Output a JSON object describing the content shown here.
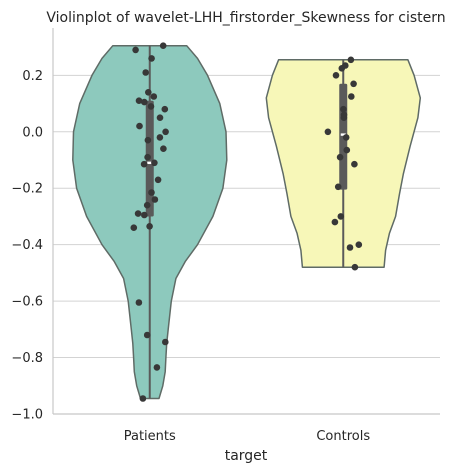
{
  "chart_data": {
    "type": "violin",
    "title": "Violinplot of wavelet-LHH_firstorder_Skewness for cistern",
    "xlabel": "target",
    "ylabel": "",
    "categories": [
      "Patients",
      "Controls"
    ],
    "ylim": [
      -1.0,
      0.35
    ],
    "yticks": [
      -1.0,
      -0.8,
      -0.6,
      -0.4,
      -0.2,
      0.0,
      0.2
    ],
    "ytick_labels": [
      "−1.0",
      "−0.8",
      "−0.6",
      "−0.4",
      "−0.2",
      "0.0",
      "0.2"
    ],
    "grid": "horizontal",
    "colors": {
      "Patients": "#8dc9bd",
      "Controls": "#f7f7b8",
      "violin_edge": "#5f6b66",
      "box": "#5a5a5a",
      "points": "#383838",
      "grid": "#d3d3d3",
      "spine": "#c8c8c8"
    },
    "series": [
      {
        "name": "Patients",
        "min": -0.945,
        "max": 0.305,
        "q1": -0.3,
        "median": -0.11,
        "q3": 0.11,
        "points": [
          0.305,
          0.29,
          0.26,
          0.21,
          0.14,
          0.125,
          0.11,
          0.105,
          0.09,
          0.08,
          0.05,
          0.02,
          0.0,
          -0.02,
          -0.03,
          -0.06,
          -0.09,
          -0.11,
          -0.115,
          -0.17,
          -0.215,
          -0.24,
          -0.26,
          -0.29,
          -0.295,
          -0.335,
          -0.34,
          -0.605,
          -0.72,
          -0.745,
          -0.835,
          -0.945
        ],
        "density": [
          [
            -0.945,
            0.12
          ],
          [
            -0.9,
            0.17
          ],
          [
            -0.85,
            0.2
          ],
          [
            -0.8,
            0.21
          ],
          [
            -0.75,
            0.22
          ],
          [
            -0.7,
            0.24
          ],
          [
            -0.6,
            0.28
          ],
          [
            -0.52,
            0.34
          ],
          [
            -0.46,
            0.46
          ],
          [
            -0.4,
            0.62
          ],
          [
            -0.3,
            0.82
          ],
          [
            -0.2,
            0.95
          ],
          [
            -0.1,
            1.0
          ],
          [
            0.0,
            0.99
          ],
          [
            0.1,
            0.91
          ],
          [
            0.2,
            0.75
          ],
          [
            0.26,
            0.62
          ],
          [
            0.305,
            0.48
          ]
        ]
      },
      {
        "name": "Controls",
        "min": -0.48,
        "max": 0.255,
        "q1": -0.205,
        "median": -0.01,
        "q3": 0.17,
        "points": [
          0.255,
          0.235,
          0.225,
          0.2,
          0.17,
          0.125,
          0.08,
          0.06,
          0.05,
          0.0,
          -0.02,
          -0.065,
          -0.09,
          -0.115,
          -0.195,
          -0.3,
          -0.32,
          -0.4,
          -0.41,
          -0.48
        ],
        "density": [
          [
            -0.48,
            0.53
          ],
          [
            -0.42,
            0.55
          ],
          [
            -0.36,
            0.6
          ],
          [
            -0.3,
            0.68
          ],
          [
            -0.22,
            0.73
          ],
          [
            -0.15,
            0.78
          ],
          [
            -0.05,
            0.87
          ],
          [
            0.05,
            0.97
          ],
          [
            0.12,
            1.0
          ],
          [
            0.2,
            0.92
          ],
          [
            0.255,
            0.84
          ]
        ]
      }
    ]
  }
}
